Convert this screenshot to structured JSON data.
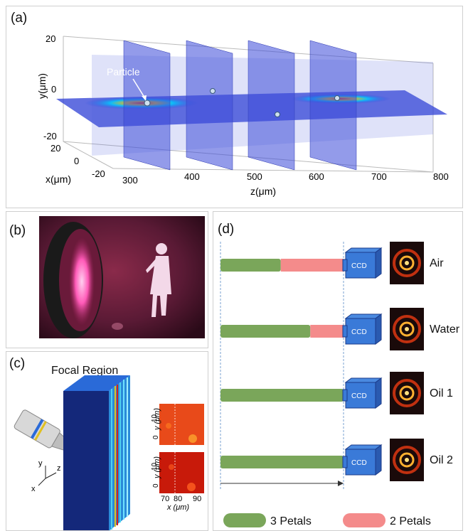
{
  "panel_a": {
    "label": "(a)",
    "particle_label": "Particle",
    "y_axis_label": "y(μm)",
    "x_axis_label": "x(μm)",
    "z_axis_label": "z(μm)",
    "y_ticks": [
      "20",
      "0",
      "-20"
    ],
    "x_ticks": [
      "20",
      "0",
      "-20"
    ],
    "z_ticks": [
      "300",
      "400",
      "500",
      "600",
      "700",
      "800"
    ]
  },
  "panel_b": {
    "label": "(b)"
  },
  "panel_c": {
    "label": "(c)",
    "title": "Focal Region",
    "axes": {
      "y": "y",
      "z": "z",
      "x": "x"
    },
    "inset_top_ylabel": "y (μm)",
    "inset_top_yticks": [
      "10",
      "0"
    ],
    "inset_bottom_ylabel": "y (μm)",
    "inset_bottom_yticks": [
      "10",
      "0"
    ],
    "inset_xticks": [
      "70",
      "80",
      "90"
    ],
    "inset_xlabel": "x (μm)"
  },
  "panel_d": {
    "label": "(d)",
    "ccd_label": "CCD",
    "rows": [
      {
        "medium": "Air",
        "green_fraction": 0.49
      },
      {
        "medium": "Water",
        "green_fraction": 0.73
      },
      {
        "medium": "Oil 1",
        "green_fraction": 1.0
      },
      {
        "medium": "Oil 2",
        "green_fraction": 1.0
      }
    ],
    "legend": [
      {
        "label": "3 Petals",
        "color": "#7aa65a"
      },
      {
        "label": "2 Petals",
        "color": "#f48b8b"
      }
    ]
  }
}
